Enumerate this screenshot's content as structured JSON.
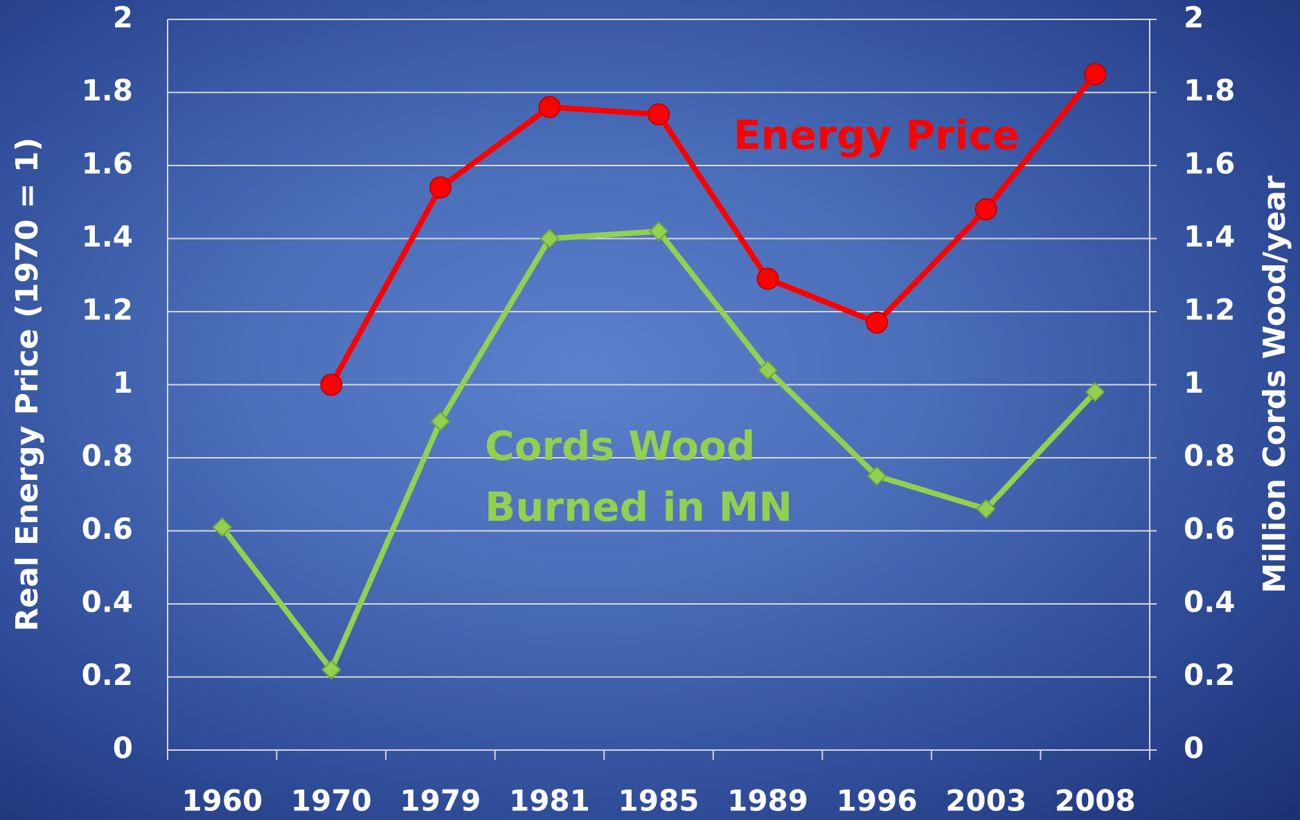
{
  "chart_data": {
    "type": "line",
    "categories": [
      "1960",
      "1970",
      "1979",
      "1981",
      "1985",
      "1989",
      "1996",
      "2003",
      "2008"
    ],
    "series": [
      {
        "name": "Energy Price",
        "color": "#ff0000",
        "marker": "circle",
        "axis": "y",
        "values": [
          null,
          1,
          1.54,
          1.76,
          1.74,
          1.29,
          1.17,
          1.48,
          1.85
        ]
      },
      {
        "name": "Cords Wood Burned in MN",
        "color": "#92d050",
        "marker": "diamond",
        "axis": "y2",
        "values": [
          0.61,
          0.22,
          0.9,
          1.4,
          1.42,
          1.04,
          0.75,
          0.66,
          0.98
        ]
      }
    ],
    "ylabel": "Real Energy Price (1970 = 1)",
    "y2label": "Million Cords Wood/year",
    "ylim": [
      0,
      2
    ],
    "yticks": [
      0,
      0.2,
      0.4,
      0.6,
      0.8,
      1,
      1.2,
      1.4,
      1.6,
      1.8,
      2
    ],
    "y2lim": [
      0,
      2
    ],
    "y2ticks": [
      0,
      0.2,
      0.4,
      0.6,
      0.8,
      1,
      1.2,
      1.4,
      1.6,
      1.8,
      2
    ],
    "grid": true
  }
}
